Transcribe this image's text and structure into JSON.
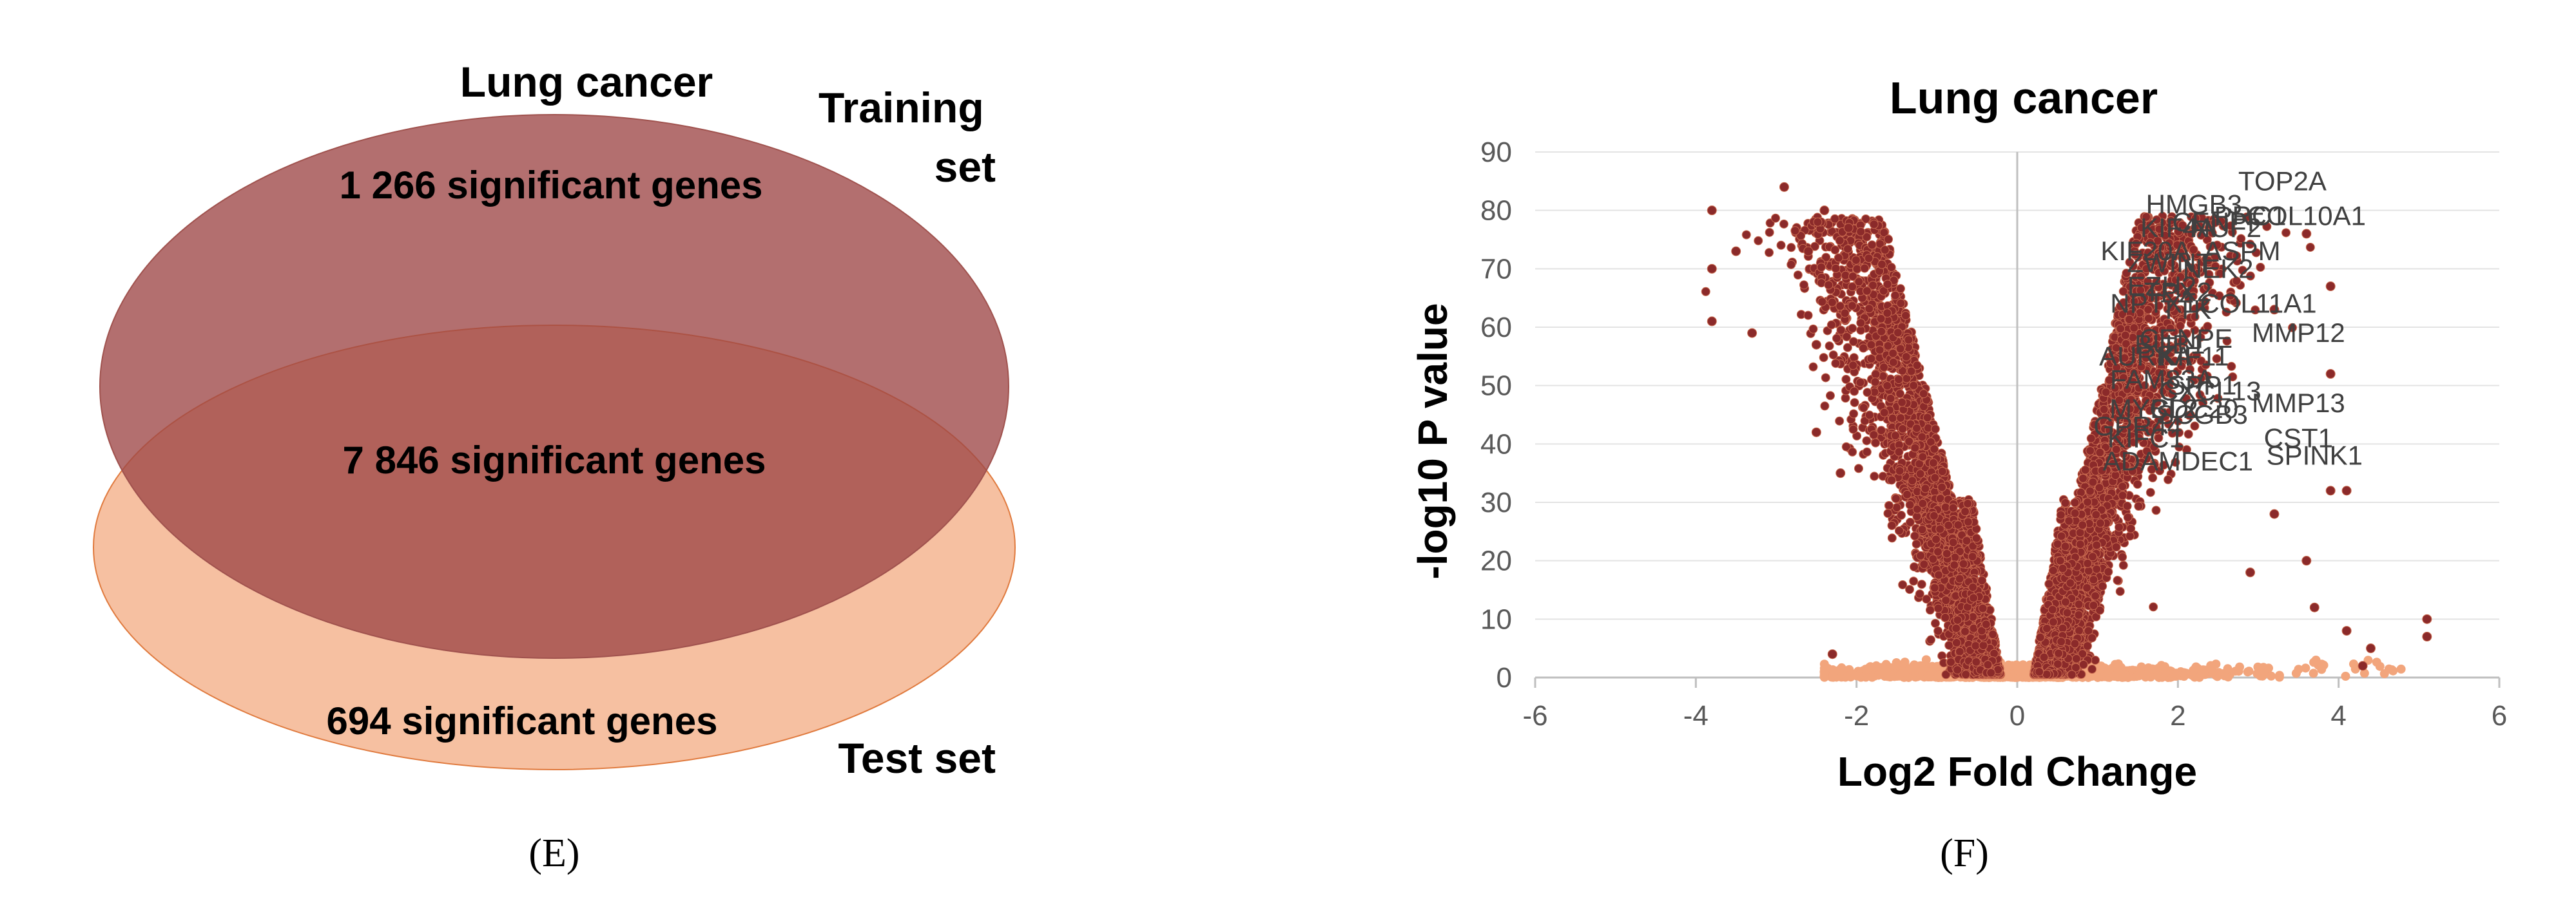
{
  "chart_data": [
    {
      "type": "venn",
      "title": "Lung cancer",
      "sets": [
        {
          "name": "Training set",
          "color": "#9e4747",
          "only_count_label": "1 266 significant genes"
        },
        {
          "name": "Test set",
          "color": "#f4b08a",
          "only_count_label": "694 significant genes"
        }
      ],
      "overlap_label": "7 846 significant genes",
      "panel_label": "(E)"
    },
    {
      "type": "scatter",
      "title": "Lung cancer",
      "xlabel": "Log2 Fold Change",
      "ylabel": "-log10 P value",
      "xlim": [
        -6,
        6
      ],
      "ylim": [
        0,
        90
      ],
      "xticks": [
        "-6",
        "-4",
        "-2",
        "0",
        "2",
        "4",
        "6"
      ],
      "yticks": [
        "0",
        "10",
        "20",
        "30",
        "40",
        "50",
        "60",
        "70",
        "80",
        "90"
      ],
      "grid": true,
      "colors": {
        "significant": "#8b2a2a",
        "nonsignificant": "#f2a57c"
      },
      "labeled_points": [
        {
          "label": "TOP2A",
          "x": 3.3,
          "y": 85
        },
        {
          "label": "HMGB3",
          "x": 2.2,
          "y": 81
        },
        {
          "label": "COL10A1",
          "x": 3.6,
          "y": 79
        },
        {
          "label": "CENPF",
          "x": 2.5,
          "y": 78
        },
        {
          "label": "PRC1",
          "x": 2.9,
          "y": 79
        },
        {
          "label": "KIF4A",
          "x": 2.0,
          "y": 77
        },
        {
          "label": "NUF2",
          "x": 2.6,
          "y": 77
        },
        {
          "label": "KIF20A",
          "x": 1.6,
          "y": 73
        },
        {
          "label": "ASPM",
          "x": 2.8,
          "y": 73
        },
        {
          "label": "ZWINT",
          "x": 1.9,
          "y": 71
        },
        {
          "label": "NEK2",
          "x": 2.5,
          "y": 70
        },
        {
          "label": "EZH2",
          "x": 1.8,
          "y": 67
        },
        {
          "label": "TPX2",
          "x": 2.0,
          "y": 66
        },
        {
          "label": "NPTX1",
          "x": 1.7,
          "y": 64
        },
        {
          "label": "TTK",
          "x": 2.1,
          "y": 63
        },
        {
          "label": "COL11A1",
          "x": 3.0,
          "y": 64
        },
        {
          "label": "CENPE",
          "x": 2.1,
          "y": 58
        },
        {
          "label": "MMP12",
          "x": 3.5,
          "y": 59
        },
        {
          "label": "BUB1",
          "x": 1.9,
          "y": 57
        },
        {
          "label": "AURKA",
          "x": 1.6,
          "y": 55
        },
        {
          "label": "KIF11",
          "x": 2.2,
          "y": 55
        },
        {
          "label": "FAM83A",
          "x": 1.8,
          "y": 51
        },
        {
          "label": "SPP1",
          "x": 2.3,
          "y": 50
        },
        {
          "label": "CXCL13",
          "x": 2.4,
          "y": 49
        },
        {
          "label": "MYBL2",
          "x": 1.7,
          "y": 46
        },
        {
          "label": "CDC20",
          "x": 2.2,
          "y": 46
        },
        {
          "label": "MMP13",
          "x": 3.5,
          "y": 47
        },
        {
          "label": "SCGB3",
          "x": 2.3,
          "y": 45
        },
        {
          "label": "GPR44",
          "x": 1.5,
          "y": 43
        },
        {
          "label": "KIFC1",
          "x": 1.6,
          "y": 41
        },
        {
          "label": "CST1",
          "x": 3.5,
          "y": 41
        },
        {
          "label": "SPINK1",
          "x": 3.7,
          "y": 38
        },
        {
          "label": "ADAMDEC1",
          "x": 2.0,
          "y": 37
        }
      ],
      "panel_label": "(F)"
    }
  ]
}
